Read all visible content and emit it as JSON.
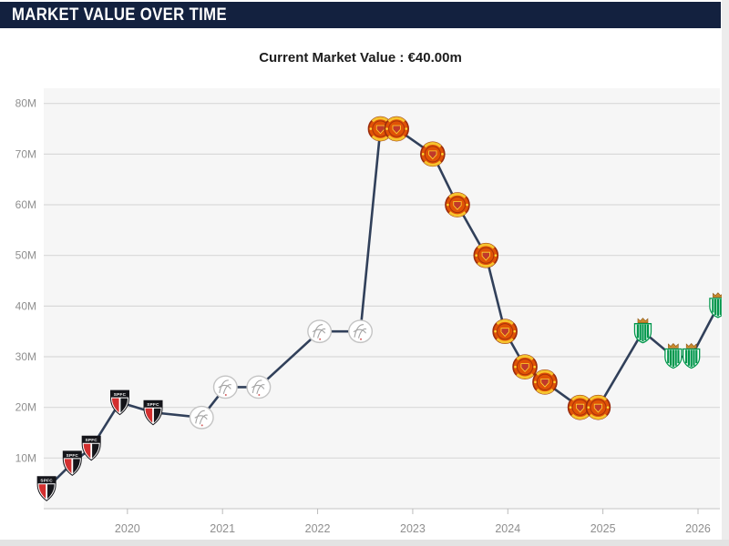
{
  "header": {
    "title": "MARKET VALUE OVER TIME"
  },
  "subtitle": {
    "text": "Current Market Value : €40.00m"
  },
  "chart_data": {
    "type": "line",
    "title": "Market value over time",
    "currency": "EUR",
    "unit": "million",
    "current_value_label": "€40.00m",
    "grid": true,
    "legend": false,
    "line_color": "#31405a",
    "plot_bg": "#f6f6f6",
    "grid_color": "#d9d9d9",
    "axis_line_color": "#cfcfcf",
    "tick_color": "#bbbbbb",
    "axis_text_color": "#8f8f8f",
    "x_range": [
      2019.12,
      2026.23
    ],
    "y_range": [
      0,
      83
    ],
    "y_ticks": [
      {
        "value": 10,
        "label": "10M"
      },
      {
        "value": 20,
        "label": "20M"
      },
      {
        "value": 30,
        "label": "30M"
      },
      {
        "value": 40,
        "label": "40M"
      },
      {
        "value": 50,
        "label": "50M"
      },
      {
        "value": 60,
        "label": "60M"
      },
      {
        "value": 70,
        "label": "70M"
      },
      {
        "value": 80,
        "label": "80M"
      }
    ],
    "x_ticks": [
      {
        "value": 2020,
        "label": "2020"
      },
      {
        "value": 2021,
        "label": "2021"
      },
      {
        "value": 2022,
        "label": "2022"
      },
      {
        "value": 2023,
        "label": "2023"
      },
      {
        "value": 2024,
        "label": "2024"
      },
      {
        "value": 2025,
        "label": "2025"
      },
      {
        "value": 2026,
        "label": "2026"
      }
    ],
    "clubs": {
      "sao-paulo-fc": {
        "name": "Sao Paulo FC",
        "abbr": "SPFC",
        "colors": {
          "primary": "#15151a",
          "secondary": "#d32f2f",
          "tertiary": "#ffffff"
        }
      },
      "ajax": {
        "name": "AFC Ajax",
        "colors": {
          "primary": "#ffffff",
          "secondary": "#a3a3a3",
          "accent": "#c62828"
        }
      },
      "manchester-united": {
        "name": "Manchester United",
        "colors": {
          "primary": "#e05206",
          "secondary": "#9a2c0d",
          "accent": "#fdd835",
          "shield": "#c0392b"
        }
      },
      "real-betis": {
        "name": "Real Betis",
        "colors": {
          "primary": "#00964b",
          "secondary": "#ffffff",
          "accent": "#c98a2e",
          "crown_dark": "#8d5a1a"
        }
      }
    },
    "series": [
      {
        "name": "Market value (€m)",
        "points": [
          {
            "x": 2019.15,
            "value": 4,
            "club": "sao-paulo-fc"
          },
          {
            "x": 2019.42,
            "value": 9,
            "club": "sao-paulo-fc"
          },
          {
            "x": 2019.62,
            "value": 12,
            "club": "sao-paulo-fc"
          },
          {
            "x": 2019.92,
            "value": 21,
            "club": "sao-paulo-fc"
          },
          {
            "x": 2020.27,
            "value": 19,
            "club": "sao-paulo-fc"
          },
          {
            "x": 2020.78,
            "value": 18,
            "club": "ajax"
          },
          {
            "x": 2021.03,
            "value": 24,
            "club": "ajax"
          },
          {
            "x": 2021.38,
            "value": 24,
            "club": "ajax"
          },
          {
            "x": 2022.02,
            "value": 35,
            "club": "ajax"
          },
          {
            "x": 2022.45,
            "value": 35,
            "club": "ajax"
          },
          {
            "x": 2022.66,
            "value": 75,
            "club": "manchester-united"
          },
          {
            "x": 2022.83,
            "value": 75,
            "club": "manchester-united"
          },
          {
            "x": 2023.21,
            "value": 70,
            "club": "manchester-united"
          },
          {
            "x": 2023.47,
            "value": 60,
            "club": "manchester-united"
          },
          {
            "x": 2023.77,
            "value": 50,
            "club": "manchester-united"
          },
          {
            "x": 2023.97,
            "value": 35,
            "club": "manchester-united"
          },
          {
            "x": 2024.18,
            "value": 28,
            "club": "manchester-united"
          },
          {
            "x": 2024.39,
            "value": 25,
            "club": "manchester-united"
          },
          {
            "x": 2024.76,
            "value": 20,
            "club": "manchester-united"
          },
          {
            "x": 2024.95,
            "value": 20,
            "club": "manchester-united"
          },
          {
            "x": 2025.42,
            "value": 35,
            "club": "real-betis"
          },
          {
            "x": 2025.74,
            "value": 30,
            "club": "real-betis"
          },
          {
            "x": 2025.93,
            "value": 30,
            "club": "real-betis"
          },
          {
            "x": 2026.21,
            "value": 40,
            "club": "real-betis"
          }
        ]
      }
    ]
  }
}
